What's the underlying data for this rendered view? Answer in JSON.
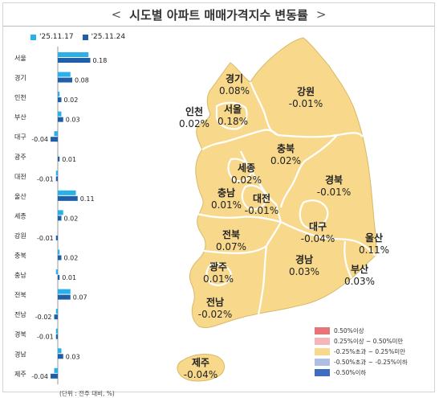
{
  "title": "시도별 아파트 매매가격지수 변동률",
  "title_left_glyph": "<",
  "title_right_glyph": ">",
  "legend": [
    {
      "label": "'25.11.17",
      "color": "#29b0e8"
    },
    {
      "label": "'25.11.24",
      "color": "#1f5fa8"
    }
  ],
  "unit_note": "(단위 : 전주 대비, %)",
  "chart_data": {
    "type": "bar",
    "orientation": "horizontal",
    "categories": [
      "서울",
      "경기",
      "인천",
      "부산",
      "대구",
      "광주",
      "대전",
      "울산",
      "세종",
      "강원",
      "충북",
      "충남",
      "전북",
      "전남",
      "경북",
      "경남",
      "제주"
    ],
    "series": [
      {
        "name": "'25.11.17",
        "color": "#29b0e8",
        "values": [
          0.17,
          0.07,
          0.01,
          0.02,
          -0.02,
          0.0,
          -0.01,
          0.1,
          0.03,
          0.0,
          0.01,
          -0.01,
          0.07,
          -0.01,
          -0.01,
          0.02,
          -0.02
        ]
      },
      {
        "name": "'25.11.24",
        "color": "#1f5fa8",
        "values": [
          0.18,
          0.08,
          0.02,
          0.03,
          -0.04,
          0.01,
          -0.01,
          0.11,
          0.02,
          -0.01,
          0.02,
          0.01,
          0.07,
          -0.02,
          -0.01,
          0.03,
          -0.04
        ]
      }
    ],
    "value_labels": [
      "0.18",
      "0.08",
      "0.02",
      "0.03",
      "-0.04",
      "0.01",
      "-0.01",
      "0.11",
      "0.02",
      "-0.01",
      "0.02",
      "0.01",
      "0.07",
      "-0.02",
      "-0.01",
      "0.03",
      "-0.04"
    ],
    "xlim": [
      -0.05,
      0.2
    ]
  },
  "map": {
    "fill_color": "#f8d98c",
    "border_color": "#ffffff",
    "regions": [
      {
        "name": "경기",
        "value": "0.08%"
      },
      {
        "name": "강원",
        "value": "-0.01%"
      },
      {
        "name": "인천",
        "value": "0.02%"
      },
      {
        "name": "서울",
        "value": "0.18%"
      },
      {
        "name": "충북",
        "value": "0.02%"
      },
      {
        "name": "세종",
        "value": "0.02%"
      },
      {
        "name": "충남",
        "value": "0.01%"
      },
      {
        "name": "대전",
        "value": "-0.01%"
      },
      {
        "name": "경북",
        "value": "-0.01%"
      },
      {
        "name": "대구",
        "value": "-0.04%"
      },
      {
        "name": "전북",
        "value": "0.07%"
      },
      {
        "name": "울산",
        "value": "0.11%"
      },
      {
        "name": "광주",
        "value": "0.01%"
      },
      {
        "name": "경남",
        "value": "0.03%"
      },
      {
        "name": "부산",
        "value": "0.03%"
      },
      {
        "name": "전남",
        "value": "-0.02%"
      },
      {
        "name": "제주",
        "value": "-0.04%"
      }
    ]
  },
  "color_legend": [
    {
      "label": "0.50%이상",
      "color": "#e8747a"
    },
    {
      "label": "0.25%이상 ~ 0.50%미만",
      "color": "#f6b6b9"
    },
    {
      "label": "-0.25%초과 ~ 0.25%미만",
      "color": "#f8d98c"
    },
    {
      "label": "-0.50%초과 ~ -0.25%이하",
      "color": "#aebfe3"
    },
    {
      "label": "-0.50%이하",
      "color": "#3f6bc0"
    }
  ]
}
